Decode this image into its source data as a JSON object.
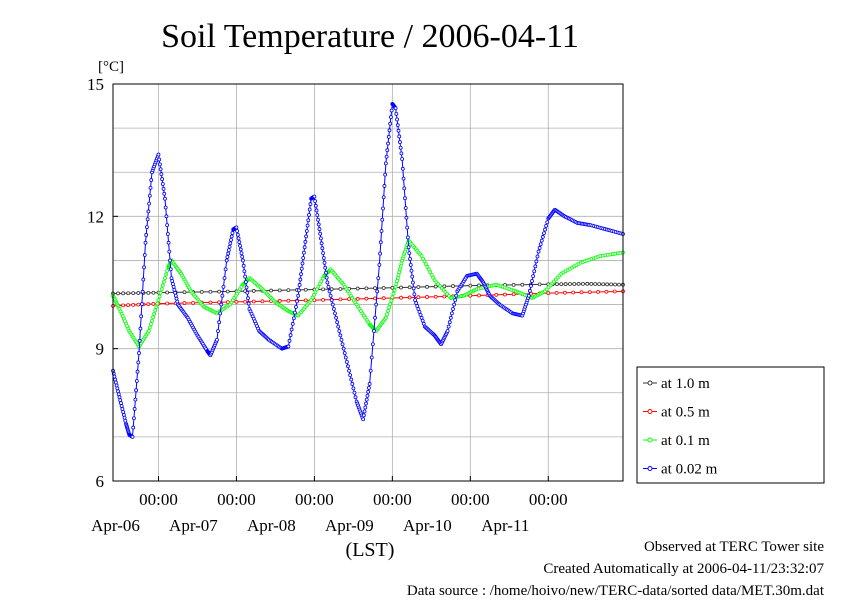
{
  "chart_data": {
    "type": "line",
    "title": "Soil Temperature / 2006-04-11",
    "ylabel": "[°C]",
    "xlabel": "(LST)",
    "ylim": [
      6,
      15
    ],
    "yticks": [
      "15",
      "12",
      "9",
      "6"
    ],
    "xlim": [
      "2006-04-05T10:00",
      "2006-04-11T23:00"
    ],
    "xtick_time_label": "00:00",
    "xtick_dates": [
      "Apr-06",
      "Apr-07",
      "Apr-08",
      "Apr-09",
      "Apr-10",
      "Apr-11"
    ],
    "grid": true,
    "legend_position": "right",
    "series": [
      {
        "name": "at 1.0 m",
        "color": "#333333",
        "points": [
          [
            "2006-04-05T10:00",
            10.25
          ],
          [
            "2006-04-06T00:00",
            10.27
          ],
          [
            "2006-04-07T00:00",
            10.3
          ],
          [
            "2006-04-08T00:00",
            10.34
          ],
          [
            "2006-04-09T00:00",
            10.38
          ],
          [
            "2006-04-10T00:00",
            10.43
          ],
          [
            "2006-04-11T00:00",
            10.46
          ],
          [
            "2006-04-11T12:00",
            10.47
          ],
          [
            "2006-04-11T23:00",
            10.45
          ]
        ]
      },
      {
        "name": "at 0.5 m",
        "color": "#ff0000",
        "points": [
          [
            "2006-04-05T10:00",
            9.97
          ],
          [
            "2006-04-06T00:00",
            10.02
          ],
          [
            "2006-04-07T00:00",
            10.06
          ],
          [
            "2006-04-08T00:00",
            10.1
          ],
          [
            "2006-04-09T00:00",
            10.15
          ],
          [
            "2006-04-10T00:00",
            10.2
          ],
          [
            "2006-04-11T00:00",
            10.26
          ],
          [
            "2006-04-11T23:00",
            10.3
          ]
        ]
      },
      {
        "name": "at 0.1 m",
        "color": "#00ff00",
        "points": [
          [
            "2006-04-05T10:00",
            10.2
          ],
          [
            "2006-04-05T12:00",
            9.9
          ],
          [
            "2006-04-05T15:00",
            9.4
          ],
          [
            "2006-04-05T18:00",
            9.05
          ],
          [
            "2006-04-05T21:00",
            9.4
          ],
          [
            "2006-04-06T00:00",
            10.1
          ],
          [
            "2006-04-06T03:00",
            10.85
          ],
          [
            "2006-04-06T04:00",
            11.0
          ],
          [
            "2006-04-06T07:00",
            10.7
          ],
          [
            "2006-04-06T10:00",
            10.3
          ],
          [
            "2006-04-06T14:00",
            9.95
          ],
          [
            "2006-04-06T18:00",
            9.8
          ],
          [
            "2006-04-06T22:00",
            10.0
          ],
          [
            "2006-04-07T02:00",
            10.45
          ],
          [
            "2006-04-07T04:00",
            10.6
          ],
          [
            "2006-04-07T08:00",
            10.35
          ],
          [
            "2006-04-07T12:00",
            10.05
          ],
          [
            "2006-04-07T16:00",
            9.85
          ],
          [
            "2006-04-07T19:00",
            9.75
          ],
          [
            "2006-04-07T23:00",
            10.1
          ],
          [
            "2006-04-08T03:00",
            10.65
          ],
          [
            "2006-04-08T05:00",
            10.8
          ],
          [
            "2006-04-08T09:00",
            10.45
          ],
          [
            "2006-04-08T13:00",
            10.0
          ],
          [
            "2006-04-08T17:00",
            9.55
          ],
          [
            "2006-04-08T19:00",
            9.4
          ],
          [
            "2006-04-08T22:00",
            9.7
          ],
          [
            "2006-04-09T01:00",
            10.4
          ],
          [
            "2006-04-09T03:00",
            11.0
          ],
          [
            "2006-04-09T05:00",
            11.45
          ],
          [
            "2006-04-09T09:00",
            11.1
          ],
          [
            "2006-04-09T13:00",
            10.55
          ],
          [
            "2006-04-09T18:00",
            10.15
          ],
          [
            "2006-04-09T22:00",
            10.2
          ],
          [
            "2006-04-10T02:00",
            10.35
          ],
          [
            "2006-04-10T08:00",
            10.45
          ],
          [
            "2006-04-10T14:00",
            10.3
          ],
          [
            "2006-04-10T19:00",
            10.15
          ],
          [
            "2006-04-10T23:00",
            10.3
          ],
          [
            "2006-04-11T04:00",
            10.7
          ],
          [
            "2006-04-11T10:00",
            10.95
          ],
          [
            "2006-04-11T16:00",
            11.1
          ],
          [
            "2006-04-11T23:00",
            11.18
          ]
        ]
      },
      {
        "name": "at 0.02 m",
        "color": "#0000ff",
        "points": [
          [
            "2006-04-05T10:00",
            8.5
          ],
          [
            "2006-04-05T12:00",
            7.9
          ],
          [
            "2006-04-05T14:00",
            7.3
          ],
          [
            "2006-04-05T15:00",
            7.05
          ],
          [
            "2006-04-05T16:00",
            7.0
          ],
          [
            "2006-04-05T18:00",
            8.9
          ],
          [
            "2006-04-05T20:00",
            11.4
          ],
          [
            "2006-04-05T22:00",
            13.0
          ],
          [
            "2006-04-06T00:00",
            13.4
          ],
          [
            "2006-04-06T02:00",
            12.4
          ],
          [
            "2006-04-06T04:00",
            10.6
          ],
          [
            "2006-04-06T06:00",
            10.0
          ],
          [
            "2006-04-06T09:00",
            9.7
          ],
          [
            "2006-04-06T12:00",
            9.3
          ],
          [
            "2006-04-06T15:00",
            8.95
          ],
          [
            "2006-04-06T16:00",
            8.85
          ],
          [
            "2006-04-06T18:00",
            9.2
          ],
          [
            "2006-04-06T21:00",
            11.0
          ],
          [
            "2006-04-06T23:00",
            11.7
          ],
          [
            "2006-04-07T00:00",
            11.75
          ],
          [
            "2006-04-07T02:00",
            11.0
          ],
          [
            "2006-04-07T04:00",
            9.9
          ],
          [
            "2006-04-07T07:00",
            9.4
          ],
          [
            "2006-04-07T10:00",
            9.2
          ],
          [
            "2006-04-07T14:00",
            9.0
          ],
          [
            "2006-04-07T16:00",
            9.05
          ],
          [
            "2006-04-07T19:00",
            10.2
          ],
          [
            "2006-04-07T21:00",
            11.3
          ],
          [
            "2006-04-07T23:00",
            12.4
          ],
          [
            "2006-04-08T00:00",
            12.45
          ],
          [
            "2006-04-08T02:00",
            11.5
          ],
          [
            "2006-04-08T04:00",
            10.5
          ],
          [
            "2006-04-08T07:00",
            9.6
          ],
          [
            "2006-04-08T10:00",
            8.7
          ],
          [
            "2006-04-08T13:00",
            7.8
          ],
          [
            "2006-04-08T15:00",
            7.4
          ],
          [
            "2006-04-08T17:00",
            8.2
          ],
          [
            "2006-04-08T20:00",
            10.9
          ],
          [
            "2006-04-08T22:00",
            13.2
          ],
          [
            "2006-04-09T00:00",
            14.55
          ],
          [
            "2006-04-09T01:00",
            14.45
          ],
          [
            "2006-04-09T03:00",
            13.3
          ],
          [
            "2006-04-09T05:00",
            11.3
          ],
          [
            "2006-04-09T07:00",
            10.1
          ],
          [
            "2006-04-09T10:00",
            9.5
          ],
          [
            "2006-04-09T13:00",
            9.3
          ],
          [
            "2006-04-09T15:00",
            9.1
          ],
          [
            "2006-04-09T17:00",
            9.4
          ],
          [
            "2006-04-09T20:00",
            10.3
          ],
          [
            "2006-04-09T23:00",
            10.65
          ],
          [
            "2006-04-10T02:00",
            10.7
          ],
          [
            "2006-04-10T04:00",
            10.5
          ],
          [
            "2006-04-10T06:00",
            10.2
          ],
          [
            "2006-04-10T09:00",
            10.0
          ],
          [
            "2006-04-10T13:00",
            9.8
          ],
          [
            "2006-04-10T16:00",
            9.75
          ],
          [
            "2006-04-10T18:00",
            10.2
          ],
          [
            "2006-04-10T21:00",
            11.2
          ],
          [
            "2006-04-11T00:00",
            11.95
          ],
          [
            "2006-04-11T02:00",
            12.15
          ],
          [
            "2006-04-11T05:00",
            12.0
          ],
          [
            "2006-04-11T09:00",
            11.85
          ],
          [
            "2006-04-11T13:00",
            11.8
          ],
          [
            "2006-04-11T18:00",
            11.7
          ],
          [
            "2006-04-11T23:00",
            11.6
          ]
        ]
      }
    ]
  },
  "footer": {
    "line1": "Observed at TERC Tower site",
    "line2": "Created Automatically at 2006-04-11/23:32:07",
    "line3": "Data source : /home/hoivo/new/TERC-data/sorted  data/MET.30m.dat"
  }
}
